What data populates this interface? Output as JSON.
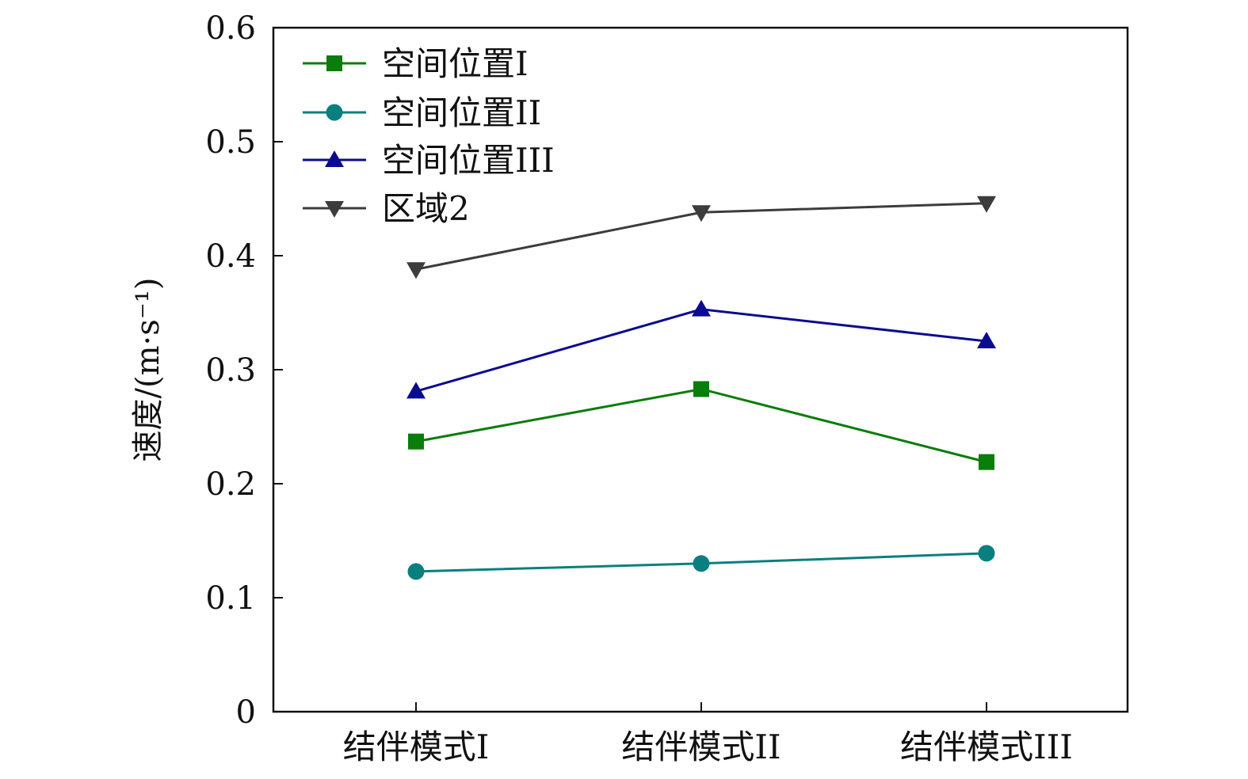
{
  "chart_data": {
    "type": "line",
    "title": "",
    "xlabel": "",
    "ylabel": "速度/(m·s⁻¹)",
    "categories": [
      "结伴模式I",
      "结伴模式II",
      "结伴模式III"
    ],
    "ylim": [
      0,
      0.6
    ],
    "yticks": [
      "0",
      "0.1",
      "0.2",
      "0.3",
      "0.4",
      "0.5",
      "0.6"
    ],
    "grid": false,
    "legend_position": "top-left",
    "series": [
      {
        "name": "空间位置I",
        "marker": "square",
        "color": "#0a7d0a",
        "values": [
          0.237,
          0.283,
          0.219
        ]
      },
      {
        "name": "空间位置II",
        "marker": "circle",
        "color": "#0a7f7f",
        "values": [
          0.123,
          0.13,
          0.139
        ]
      },
      {
        "name": "空间位置III",
        "marker": "triangle-up",
        "color": "#0b0b8f",
        "values": [
          0.281,
          0.353,
          0.325
        ]
      },
      {
        "name": "区域2",
        "marker": "triangle-down",
        "color": "#3c3c3c",
        "values": [
          0.388,
          0.438,
          0.446
        ]
      }
    ]
  }
}
